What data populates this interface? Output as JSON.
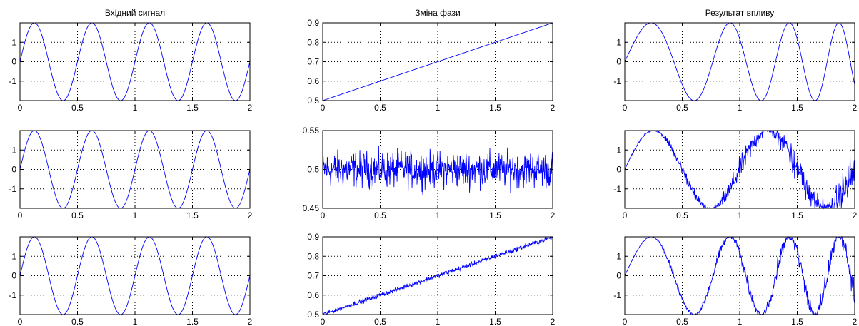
{
  "colors": {
    "line": "#0000ff",
    "axes": "#000000",
    "grid": "#000000",
    "background": "#ffffff"
  },
  "chart_data": [
    {
      "type": "line",
      "row": 0,
      "col": 0,
      "title": "Вхідний сигнал",
      "xlim": [
        0,
        2
      ],
      "ylim": [
        -2,
        2
      ],
      "grid": true,
      "signal": "sine",
      "freq": 2,
      "amplitude": 2,
      "xticks": [
        0,
        0.5,
        1,
        1.5,
        2
      ],
      "xticklabels": [
        "0",
        "0.5",
        "1",
        "1.5",
        "2"
      ],
      "yticks": [
        -1,
        0,
        1
      ],
      "yticklabels": [
        "-1",
        "0",
        "1"
      ]
    },
    {
      "type": "line",
      "row": 0,
      "col": 1,
      "title": "Зміна фази",
      "xlim": [
        0,
        2
      ],
      "ylim": [
        0.5,
        0.9
      ],
      "grid": true,
      "signal": "linear",
      "start": 0.5,
      "end": 0.9,
      "xticks": [
        0,
        0.5,
        1,
        1.5,
        2
      ],
      "xticklabels": [
        "0",
        "0.5",
        "1",
        "1.5",
        "2"
      ],
      "yticks": [
        0.5,
        0.6,
        0.7,
        0.8,
        0.9
      ],
      "yticklabels": [
        "0.5",
        "0.6",
        "0.7",
        "0.8",
        "0.9"
      ]
    },
    {
      "type": "line",
      "row": 0,
      "col": 2,
      "title": "Результат впливу",
      "xlim": [
        0,
        2
      ],
      "ylim": [
        -2,
        2
      ],
      "grid": true,
      "signal": "modulated",
      "amplitude": 2,
      "xticks": [
        0,
        0.5,
        1,
        1.5,
        2
      ],
      "xticklabels": [
        "0",
        "0.5",
        "1",
        "1.5",
        "2"
      ],
      "yticks": [
        -1,
        0,
        1
      ],
      "yticklabels": [
        "-1",
        "0",
        "1"
      ]
    },
    {
      "type": "line",
      "row": 1,
      "col": 0,
      "title": "",
      "xlim": [
        0,
        2
      ],
      "ylim": [
        -2,
        2
      ],
      "grid": true,
      "signal": "sine",
      "freq": 2,
      "amplitude": 2,
      "xticks": [
        0,
        0.5,
        1,
        1.5,
        2
      ],
      "xticklabels": [
        "0",
        "0.5",
        "1",
        "1.5",
        "2"
      ],
      "yticks": [
        -1,
        0,
        1
      ],
      "yticklabels": [
        "-1",
        "0",
        "1"
      ]
    },
    {
      "type": "line",
      "row": 1,
      "col": 1,
      "title": "",
      "xlim": [
        0,
        2
      ],
      "ylim": [
        0.45,
        0.55
      ],
      "grid": true,
      "signal": "noise",
      "mean": 0.5,
      "spread": 0.02,
      "xticks": [
        0,
        0.5,
        1,
        1.5,
        2
      ],
      "xticklabels": [
        "0",
        "0.5",
        "1",
        "1.5",
        "2"
      ],
      "yticks": [
        0.45,
        0.5,
        0.55
      ],
      "yticklabels": [
        "0.45",
        "0.5",
        "0.55"
      ]
    },
    {
      "type": "line",
      "row": 1,
      "col": 2,
      "title": "",
      "xlim": [
        0,
        2
      ],
      "ylim": [
        -2,
        2
      ],
      "grid": true,
      "signal": "modulated_noisy",
      "amplitude": 2,
      "xticks": [
        0,
        0.5,
        1,
        1.5,
        2
      ],
      "xticklabels": [
        "0",
        "0.5",
        "1",
        "1.5",
        "2"
      ],
      "yticks": [
        -1,
        0,
        1
      ],
      "yticklabels": [
        "-1",
        "0",
        "1"
      ]
    },
    {
      "type": "line",
      "row": 2,
      "col": 0,
      "title": "",
      "xlim": [
        0,
        2
      ],
      "ylim": [
        -2,
        2
      ],
      "grid": true,
      "signal": "sine",
      "freq": 2,
      "amplitude": 2,
      "xticks": [
        0,
        0.5,
        1,
        1.5,
        2
      ],
      "xticklabels": [
        "0",
        "0.5",
        "1",
        "1.5",
        "2"
      ],
      "yticks": [
        -1,
        0,
        1
      ],
      "yticklabels": [
        "-1",
        "0",
        "1"
      ]
    },
    {
      "type": "line",
      "row": 2,
      "col": 1,
      "title": "",
      "xlim": [
        0,
        2
      ],
      "ylim": [
        0.5,
        0.9
      ],
      "grid": true,
      "signal": "linear_noisy",
      "start": 0.5,
      "end": 0.9,
      "spread": 0.01,
      "xticks": [
        0,
        0.5,
        1,
        1.5,
        2
      ],
      "xticklabels": [
        "0",
        "0.5",
        "1",
        "1.5",
        "2"
      ],
      "yticks": [
        0.5,
        0.6,
        0.7,
        0.8,
        0.9
      ],
      "yticklabels": [
        "0.5",
        "0.6",
        "0.7",
        "0.8",
        "0.9"
      ]
    },
    {
      "type": "line",
      "row": 2,
      "col": 2,
      "title": "",
      "xlim": [
        0,
        2
      ],
      "ylim": [
        -2,
        2
      ],
      "grid": true,
      "signal": "modulated_ramp_noisy",
      "amplitude": 2,
      "xticks": [
        0,
        0.5,
        1,
        1.5,
        2
      ],
      "xticklabels": [
        "0",
        "0.5",
        "1",
        "1.5",
        "2"
      ],
      "yticks": [
        -1,
        0,
        1
      ],
      "yticklabels": [
        "-1",
        "0",
        "1"
      ]
    }
  ]
}
